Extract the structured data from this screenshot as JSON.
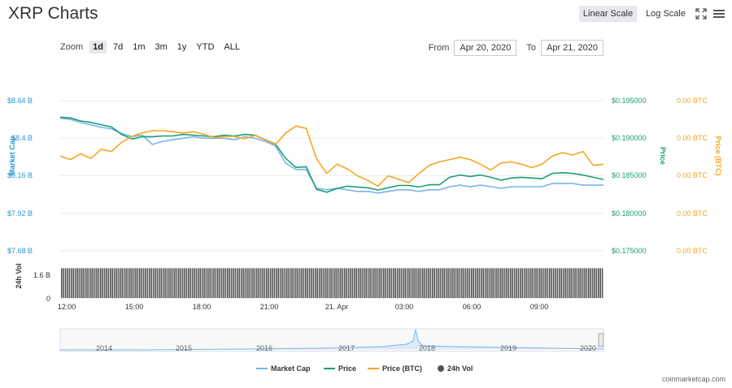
{
  "header": {
    "title": "XRP Charts"
  },
  "toolbar": {
    "linear_scale": "Linear Scale",
    "log_scale": "Log Scale",
    "zoom_label": "Zoom",
    "zoom_options": [
      "1d",
      "7d",
      "1m",
      "3m",
      "1y",
      "YTD",
      "ALL"
    ],
    "zoom_selected": "1d",
    "from_label": "From",
    "from_value": "Apr 20, 2020",
    "to_label": "To",
    "to_value": "Apr 21, 2020"
  },
  "credit": "coinmarketcap.com",
  "colors": {
    "market_cap": "#7cb5ec",
    "price": "#1a9e75",
    "price_btc": "#f5a623",
    "volume": "#555555"
  },
  "chart_data": {
    "type": "line",
    "x_ticks": [
      "12:00",
      "15:00",
      "18:00",
      "21:00",
      "21. Apr",
      "03:00",
      "06:00",
      "09:00"
    ],
    "y_left": {
      "label": "Market Cap",
      "ticks": [
        "$8.64 B",
        "$8.4 B",
        "$8.16 B",
        "$7.92 B",
        "$7.68 B"
      ],
      "range": [
        7.68,
        8.64
      ]
    },
    "y_price": {
      "label": "Price",
      "ticks": [
        "$0.195000",
        "$0.190000",
        "$0.185000",
        "$0.180000",
        "$0.175000"
      ],
      "range": [
        0.175,
        0.195
      ]
    },
    "y_btc": {
      "label": "Price (BTC)",
      "ticks": [
        "0.00 BTC",
        "0.00 BTC",
        "0.00 BTC",
        "0.00 BTC",
        "0.00 BTC"
      ]
    },
    "volume": {
      "label": "24h Vol",
      "ticks": [
        "1.6 B",
        "0"
      ],
      "range": [
        0,
        2.4
      ],
      "value_approx": 1.95
    },
    "series": [
      {
        "name": "Market Cap",
        "unit": "B USD",
        "values": [
          8.528,
          8.52,
          8.5,
          8.486,
          8.47,
          8.46,
          8.43,
          8.41,
          8.42,
          8.36,
          8.38,
          8.39,
          8.4,
          8.41,
          8.4,
          8.4,
          8.4,
          8.39,
          8.41,
          8.4,
          8.38,
          8.35,
          8.24,
          8.2,
          8.2,
          8.08,
          8.07,
          8.08,
          8.07,
          8.06,
          8.06,
          8.05,
          8.06,
          8.07,
          8.07,
          8.06,
          8.07,
          8.07,
          8.09,
          8.1,
          8.09,
          8.1,
          8.09,
          8.08,
          8.09,
          8.09,
          8.09,
          8.09,
          8.11,
          8.11,
          8.11,
          8.1,
          8.1,
          8.1
        ]
      },
      {
        "name": "Price",
        "unit": "USD",
        "values": [
          0.1928,
          0.1927,
          0.1923,
          0.1921,
          0.1918,
          0.1915,
          0.1905,
          0.1899,
          0.1902,
          0.1902,
          0.1903,
          0.1903,
          0.1905,
          0.1904,
          0.1903,
          0.1902,
          0.1904,
          0.1903,
          0.1905,
          0.1904,
          0.1898,
          0.1892,
          0.1873,
          0.1861,
          0.1862,
          0.1832,
          0.1828,
          0.1833,
          0.1836,
          0.1835,
          0.1834,
          0.1831,
          0.1834,
          0.1837,
          0.1837,
          0.1835,
          0.1838,
          0.1838,
          0.1848,
          0.1851,
          0.1849,
          0.1851,
          0.1848,
          0.1844,
          0.1847,
          0.1848,
          0.1847,
          0.1846,
          0.1853,
          0.1854,
          0.1853,
          0.1851,
          0.1848,
          0.1845
        ]
      },
      {
        "name": "Price (BTC)",
        "unit": "BTC (scale hidden)",
        "values": [
          232,
          229,
          234,
          230,
          238,
          236,
          244,
          249,
          252,
          254,
          254,
          253,
          252,
          253,
          251,
          248,
          249,
          249,
          247,
          250,
          246,
          242,
          252,
          258,
          256,
          230,
          217,
          225,
          221,
          215,
          211,
          206,
          215,
          212,
          209,
          217,
          224,
          227,
          229,
          231,
          229,
          225,
          220,
          226,
          227,
          225,
          222,
          225,
          232,
          235,
          233,
          236,
          224,
          225
        ]
      }
    ],
    "navigator": {
      "years": [
        "2014",
        "2015",
        "2016",
        "2017",
        "2018",
        "2019",
        "2020"
      ]
    },
    "legend": [
      "Market Cap",
      "Price",
      "Price (BTC)",
      "24h Vol"
    ],
    "legend_position": "bottom-center",
    "grid": true
  }
}
